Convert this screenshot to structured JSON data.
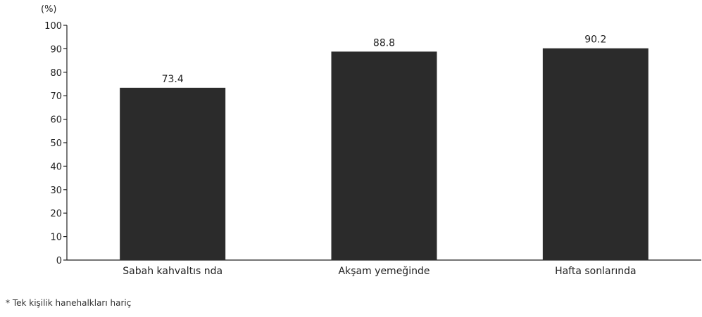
{
  "chart_data": {
    "type": "bar",
    "unit_label": "(%)",
    "categories": [
      "Sabah kahvaltıs nda",
      "Akşam yemeğinde",
      "Hafta sonlarında"
    ],
    "values": [
      73.4,
      88.8,
      90.2
    ],
    "value_labels": [
      "73.4",
      "88.8",
      "90.2"
    ],
    "ylim": [
      0,
      100
    ],
    "yticks": [
      0,
      10,
      20,
      30,
      40,
      50,
      60,
      70,
      80,
      90,
      100
    ],
    "bar_color": "#2b2b2b",
    "grid": false,
    "title": "",
    "xlabel": "",
    "ylabel": ""
  },
  "footnote": "* Tek kişilik hanehalkları hariç"
}
